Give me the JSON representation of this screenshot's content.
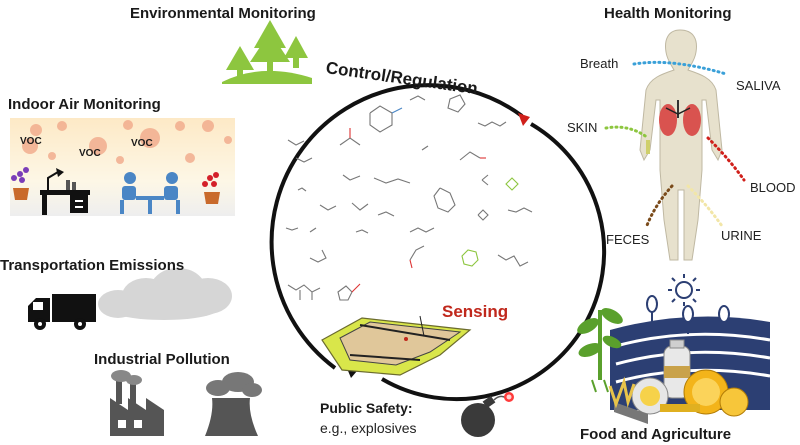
{
  "sections": {
    "environmental": "Environmental Monitoring",
    "health": "Health Monitoring",
    "indoor": "Indoor Air Monitoring",
    "transport": "Transportation Emissions",
    "industrial": "Industrial Pollution",
    "food": "Food and Agriculture",
    "public_safety_title": "Public Safety:",
    "public_safety_sub": "e.g., explosives"
  },
  "cycle": {
    "top_label": "Control/Regulation",
    "sensing_label": "Sensing"
  },
  "indoor_voc": [
    "VOC",
    "VOC",
    "VOC"
  ],
  "body_labels": {
    "breath": "Breath",
    "saliva": "SALIVA",
    "skin": "SKIN",
    "blood": "BLOOD",
    "feces": "FECES",
    "urine": "URINE"
  },
  "colors": {
    "green": "#8dc63f",
    "blue": "#4a86c5",
    "sensing_red": "#c0281c",
    "arrow_red": "#d0201b",
    "body": "#e7e1cd"
  }
}
